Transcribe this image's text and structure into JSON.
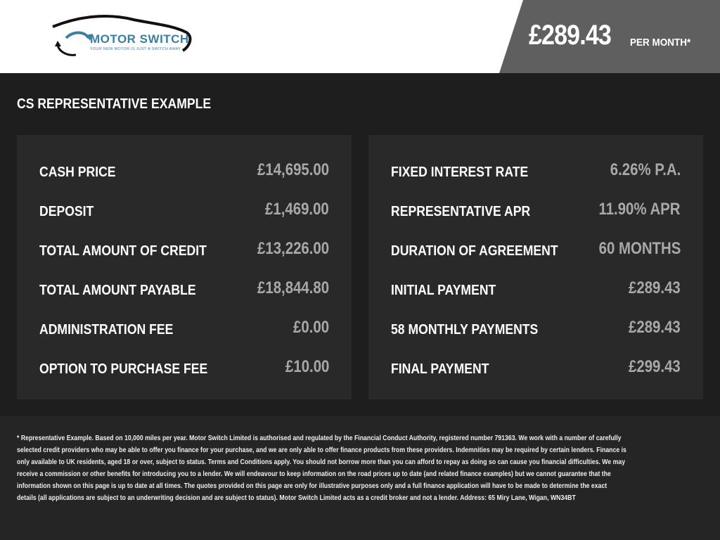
{
  "header": {
    "brand": "MOTOR SWITCH",
    "tagline": "YOUR NEW MOTOR IS JUST A SWITCH AWAY",
    "monthly_price": "£289.43",
    "per_month_label": "PER MONTH*"
  },
  "section_title": "CS REPRESENTATIVE EXAMPLE",
  "left_panel": [
    {
      "label": "CASH PRICE",
      "value": "£14,695.00"
    },
    {
      "label": "DEPOSIT",
      "value": "£1,469.00"
    },
    {
      "label": "TOTAL AMOUNT OF CREDIT",
      "value": "£13,226.00"
    },
    {
      "label": "TOTAL AMOUNT PAYABLE",
      "value": "£18,844.80"
    },
    {
      "label": "ADMINISTRATION FEE",
      "value": "£0.00"
    },
    {
      "label": "OPTION TO PURCHASE FEE",
      "value": "£10.00"
    }
  ],
  "right_panel": [
    {
      "label": "FIXED INTEREST RATE",
      "value": "6.26% P.A."
    },
    {
      "label": "REPRESENTATIVE APR",
      "value": "11.90% APR"
    },
    {
      "label": "DURATION OF AGREEMENT",
      "value": "60 MONTHS"
    },
    {
      "label": "INITIAL PAYMENT",
      "value": "£289.43"
    },
    {
      "label": "58 MONTHLY PAYMENTS",
      "value": "£289.43"
    },
    {
      "label": "FINAL PAYMENT",
      "value": "£299.43"
    }
  ],
  "disclaimer_lines": [
    "* Representative Example. Based on 10,000 miles per year. Motor Switch Limited  is authorised and regulated by the Financial Conduct Authority, registered number 791363. We work with a number of carefully",
    "selected credit providers who may be able to offer you finance for your purchase, and we are only able to offer finance products from these providers. Indemnities may be required by certain lenders. Finance is",
    "only available to UK residents, aged 18 or over, subject to status. Terms and Conditions apply. You should not borrow more than you can afford to repay as doing so can cause you financial difficulties. We may",
    "receive a commission or other benefits for introducing you to a lender. We will endeavour to keep information on the road prices up to date (and related finance examples) but we cannot guarantee that the",
    "information shown on this page is up to date at all times. The quotes provided on this page are only for illustrative purposes only and a full finance application will have to be made to determine the exact",
    "details (all applications are subject to an underwriting decision and are subject to status). Motor Switch Limited  acts as a credit broker and not a lender. Address: 65 Miry Lane, Wigan, WN34BT"
  ],
  "colors": {
    "brand": "#3b7fa0",
    "background": "#1e1e1e",
    "panel": "#292929",
    "price_panel": "#5f5f5f",
    "value_text": "#a8a8a8"
  }
}
